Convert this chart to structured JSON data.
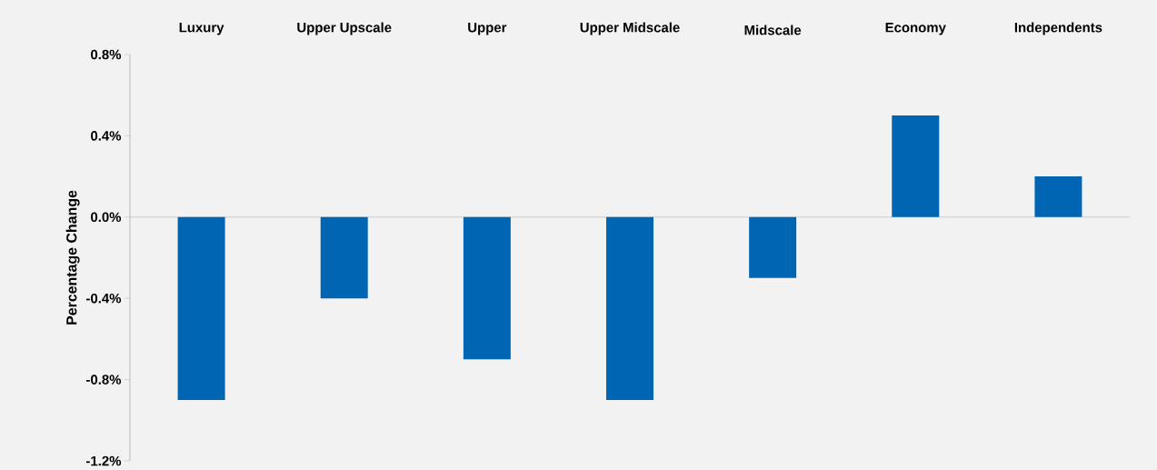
{
  "chart_data": {
    "type": "bar",
    "ylabel": "Percentage Change",
    "categories": [
      "Luxury",
      "Upper Upscale",
      "Upper",
      "Upper Midscale",
      "Midscale",
      "Economy",
      "Independents"
    ],
    "values": [
      -0.9,
      -0.4,
      -0.7,
      -0.9,
      -0.3,
      0.5,
      0.2
    ],
    "color": "#0066b3",
    "ylim": [
      -1.2,
      0.8
    ],
    "yticks": [
      {
        "value": 0.8,
        "label": "0.8%"
      },
      {
        "value": 0.4,
        "label": "0.4%"
      },
      {
        "value": 0.0,
        "label": "0.0%"
      },
      {
        "value": -0.4,
        "label": "-0.4%"
      },
      {
        "value": -0.8,
        "label": "-0.8%"
      },
      {
        "value": -1.2,
        "label": "-1.2%"
      }
    ]
  }
}
